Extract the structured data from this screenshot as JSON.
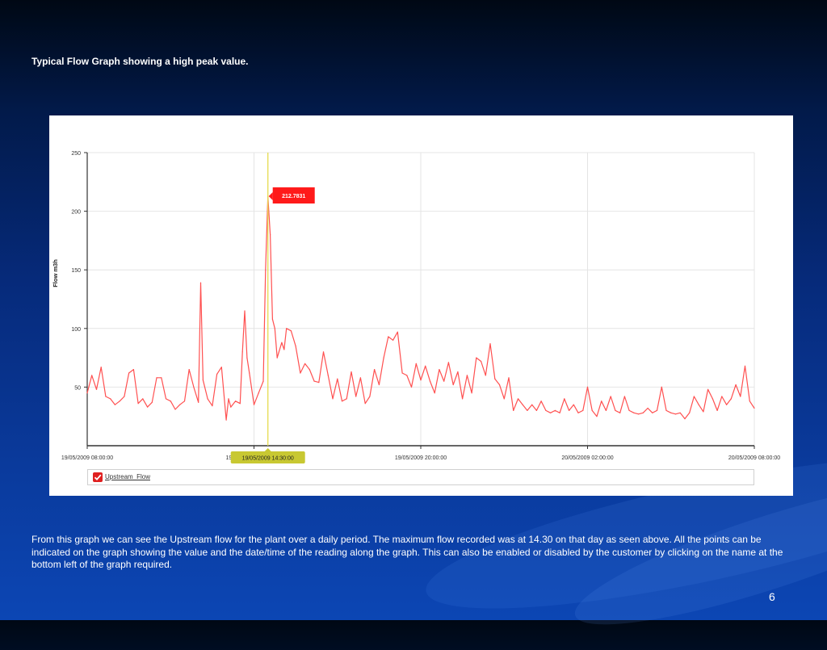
{
  "slide": {
    "title": "Typical Flow Graph showing a high peak value.",
    "description": "From this graph we can see the Upstream flow for the plant over a daily period. The maximum flow recorded was at 14.30 on that day as seen above. All the points can be indicated on the graph showing the value and the date/time of the reading along the graph. This can also be enabled or disabled by the customer by clicking on the name at the bottom left of the graph required.",
    "page_number": "6"
  },
  "colors": {
    "series": "#ff5050",
    "peak_label_bg": "#ff1a1a",
    "cursor_line": "#e6dc50",
    "cursor_label_bg": "#c8c832"
  },
  "icons": {
    "legend_checkbox": "check-icon"
  },
  "chart_data": {
    "type": "line",
    "title": "",
    "xlabel": "",
    "ylabel": "Flow m3h",
    "ylim": [
      0,
      250
    ],
    "yticks": [
      50,
      100,
      150,
      200,
      250
    ],
    "xlim": [
      "19/05/2009 08:00:00",
      "20/05/2009 08:00:00"
    ],
    "xtick_labels": [
      "19/05/2009 08:00:00",
      "19/05/2009 20:00:00",
      "20/05/2009 02:00:00",
      "20/05/2009 08:00:00"
    ],
    "xtick_partial_label": "19",
    "cursor_label": "19/05/2009 14:30:00",
    "peak": {
      "time": "19/05/2009 14:30:00",
      "label": "212.7831"
    },
    "legend": [
      {
        "name": "Upstream_Flow",
        "checked": true
      }
    ],
    "series": [
      {
        "name": "Upstream_Flow",
        "points": [
          [
            "19/05/2009 08:00:00",
            45
          ],
          [
            "19/05/2009 08:10:00",
            60
          ],
          [
            "19/05/2009 08:20:00",
            48
          ],
          [
            "19/05/2009 08:30:00",
            67
          ],
          [
            "19/05/2009 08:40:00",
            42
          ],
          [
            "19/05/2009 08:50:00",
            40
          ],
          [
            "19/05/2009 09:00:00",
            35
          ],
          [
            "19/05/2009 09:10:00",
            38
          ],
          [
            "19/05/2009 09:20:00",
            42
          ],
          [
            "19/05/2009 09:30:00",
            62
          ],
          [
            "19/05/2009 09:40:00",
            65
          ],
          [
            "19/05/2009 09:50:00",
            36
          ],
          [
            "19/05/2009 10:00:00",
            40
          ],
          [
            "19/05/2009 10:10:00",
            33
          ],
          [
            "19/05/2009 10:20:00",
            37
          ],
          [
            "19/05/2009 10:30:00",
            58
          ],
          [
            "19/05/2009 10:40:00",
            58
          ],
          [
            "19/05/2009 10:50:00",
            40
          ],
          [
            "19/05/2009 11:00:00",
            38
          ],
          [
            "19/05/2009 11:10:00",
            31
          ],
          [
            "19/05/2009 11:20:00",
            35
          ],
          [
            "19/05/2009 11:30:00",
            38
          ],
          [
            "19/05/2009 11:40:00",
            65
          ],
          [
            "19/05/2009 11:50:00",
            50
          ],
          [
            "19/05/2009 12:00:00",
            37
          ],
          [
            "19/05/2009 12:05:00",
            139
          ],
          [
            "19/05/2009 12:10:00",
            56
          ],
          [
            "19/05/2009 12:20:00",
            40
          ],
          [
            "19/05/2009 12:30:00",
            34
          ],
          [
            "19/05/2009 12:40:00",
            61
          ],
          [
            "19/05/2009 12:50:00",
            67
          ],
          [
            "19/05/2009 13:00:00",
            22
          ],
          [
            "19/05/2009 13:05:00",
            40
          ],
          [
            "19/05/2009 13:10:00",
            33
          ],
          [
            "19/05/2009 13:20:00",
            38
          ],
          [
            "19/05/2009 13:30:00",
            36
          ],
          [
            "19/05/2009 13:35:00",
            80
          ],
          [
            "19/05/2009 13:40:00",
            115
          ],
          [
            "19/05/2009 13:45:00",
            75
          ],
          [
            "19/05/2009 13:50:00",
            62
          ],
          [
            "19/05/2009 14:00:00",
            35
          ],
          [
            "19/05/2009 14:10:00",
            45
          ],
          [
            "19/05/2009 14:20:00",
            55
          ],
          [
            "19/05/2009 14:25:00",
            150
          ],
          [
            "19/05/2009 14:30:00",
            212.7831
          ],
          [
            "19/05/2009 14:35:00",
            180
          ],
          [
            "19/05/2009 14:40:00",
            108
          ],
          [
            "19/05/2009 14:45:00",
            100
          ],
          [
            "19/05/2009 14:50:00",
            75
          ],
          [
            "19/05/2009 15:00:00",
            88
          ],
          [
            "19/05/2009 15:05:00",
            82
          ],
          [
            "19/05/2009 15:10:00",
            100
          ],
          [
            "19/05/2009 15:20:00",
            98
          ],
          [
            "19/05/2009 15:30:00",
            85
          ],
          [
            "19/05/2009 15:40:00",
            62
          ],
          [
            "19/05/2009 15:50:00",
            70
          ],
          [
            "19/05/2009 16:00:00",
            65
          ],
          [
            "19/05/2009 16:10:00",
            55
          ],
          [
            "19/05/2009 16:20:00",
            54
          ],
          [
            "19/05/2009 16:30:00",
            80
          ],
          [
            "19/05/2009 16:40:00",
            60
          ],
          [
            "19/05/2009 16:50:00",
            40
          ],
          [
            "19/05/2009 17:00:00",
            57
          ],
          [
            "19/05/2009 17:10:00",
            38
          ],
          [
            "19/05/2009 17:20:00",
            40
          ],
          [
            "19/05/2009 17:30:00",
            63
          ],
          [
            "19/05/2009 17:40:00",
            42
          ],
          [
            "19/05/2009 17:50:00",
            58
          ],
          [
            "19/05/2009 18:00:00",
            36
          ],
          [
            "19/05/2009 18:10:00",
            42
          ],
          [
            "19/05/2009 18:20:00",
            65
          ],
          [
            "19/05/2009 18:30:00",
            52
          ],
          [
            "19/05/2009 18:40:00",
            75
          ],
          [
            "19/05/2009 18:50:00",
            93
          ],
          [
            "19/05/2009 19:00:00",
            90
          ],
          [
            "19/05/2009 19:10:00",
            97
          ],
          [
            "19/05/2009 19:20:00",
            62
          ],
          [
            "19/05/2009 19:30:00",
            60
          ],
          [
            "19/05/2009 19:40:00",
            50
          ],
          [
            "19/05/2009 19:50:00",
            70
          ],
          [
            "19/05/2009 20:00:00",
            56
          ],
          [
            "19/05/2009 20:10:00",
            68
          ],
          [
            "19/05/2009 20:20:00",
            55
          ],
          [
            "19/05/2009 20:30:00",
            45
          ],
          [
            "19/05/2009 20:40:00",
            65
          ],
          [
            "19/05/2009 20:50:00",
            55
          ],
          [
            "19/05/2009 21:00:00",
            71
          ],
          [
            "19/05/2009 21:10:00",
            52
          ],
          [
            "19/05/2009 21:20:00",
            63
          ],
          [
            "19/05/2009 21:30:00",
            40
          ],
          [
            "19/05/2009 21:40:00",
            60
          ],
          [
            "19/05/2009 21:50:00",
            45
          ],
          [
            "19/05/2009 22:00:00",
            75
          ],
          [
            "19/05/2009 22:10:00",
            72
          ],
          [
            "19/05/2009 22:20:00",
            60
          ],
          [
            "19/05/2009 22:30:00",
            87
          ],
          [
            "19/05/2009 22:40:00",
            57
          ],
          [
            "19/05/2009 22:50:00",
            52
          ],
          [
            "19/05/2009 23:00:00",
            40
          ],
          [
            "19/05/2009 23:10:00",
            58
          ],
          [
            "19/05/2009 23:20:00",
            30
          ],
          [
            "19/05/2009 23:30:00",
            40
          ],
          [
            "19/05/2009 23:40:00",
            35
          ],
          [
            "19/05/2009 23:50:00",
            30
          ],
          [
            "20/05/2009 00:00:00",
            35
          ],
          [
            "20/05/2009 00:10:00",
            30
          ],
          [
            "20/05/2009 00:20:00",
            38
          ],
          [
            "20/05/2009 00:30:00",
            30
          ],
          [
            "20/05/2009 00:40:00",
            28
          ],
          [
            "20/05/2009 00:50:00",
            30
          ],
          [
            "20/05/2009 01:00:00",
            28
          ],
          [
            "20/05/2009 01:10:00",
            40
          ],
          [
            "20/05/2009 01:20:00",
            30
          ],
          [
            "20/05/2009 01:30:00",
            35
          ],
          [
            "20/05/2009 01:40:00",
            28
          ],
          [
            "20/05/2009 01:50:00",
            30
          ],
          [
            "20/05/2009 02:00:00",
            50
          ],
          [
            "20/05/2009 02:10:00",
            30
          ],
          [
            "20/05/2009 02:20:00",
            25
          ],
          [
            "20/05/2009 02:30:00",
            38
          ],
          [
            "20/05/2009 02:40:00",
            30
          ],
          [
            "20/05/2009 02:50:00",
            42
          ],
          [
            "20/05/2009 03:00:00",
            30
          ],
          [
            "20/05/2009 03:10:00",
            28
          ],
          [
            "20/05/2009 03:20:00",
            42
          ],
          [
            "20/05/2009 03:30:00",
            30
          ],
          [
            "20/05/2009 03:40:00",
            28
          ],
          [
            "20/05/2009 03:50:00",
            27
          ],
          [
            "20/05/2009 04:00:00",
            28
          ],
          [
            "20/05/2009 04:10:00",
            32
          ],
          [
            "20/05/2009 04:20:00",
            28
          ],
          [
            "20/05/2009 04:30:00",
            30
          ],
          [
            "20/05/2009 04:40:00",
            50
          ],
          [
            "20/05/2009 04:50:00",
            30
          ],
          [
            "20/05/2009 05:00:00",
            28
          ],
          [
            "20/05/2009 05:10:00",
            27
          ],
          [
            "20/05/2009 05:20:00",
            28
          ],
          [
            "20/05/2009 05:30:00",
            23
          ],
          [
            "20/05/2009 05:40:00",
            28
          ],
          [
            "20/05/2009 05:50:00",
            42
          ],
          [
            "20/05/2009 06:00:00",
            35
          ],
          [
            "20/05/2009 06:10:00",
            29
          ],
          [
            "20/05/2009 06:20:00",
            48
          ],
          [
            "20/05/2009 06:30:00",
            40
          ],
          [
            "20/05/2009 06:40:00",
            30
          ],
          [
            "20/05/2009 06:50:00",
            42
          ],
          [
            "20/05/2009 07:00:00",
            35
          ],
          [
            "20/05/2009 07:10:00",
            40
          ],
          [
            "20/05/2009 07:20:00",
            52
          ],
          [
            "20/05/2009 07:30:00",
            42
          ],
          [
            "20/05/2009 07:40:00",
            68
          ],
          [
            "20/05/2009 07:50:00",
            38
          ],
          [
            "20/05/2009 08:00:00",
            32
          ]
        ]
      }
    ],
    "grid": true,
    "legend_position": "bottom-left"
  }
}
